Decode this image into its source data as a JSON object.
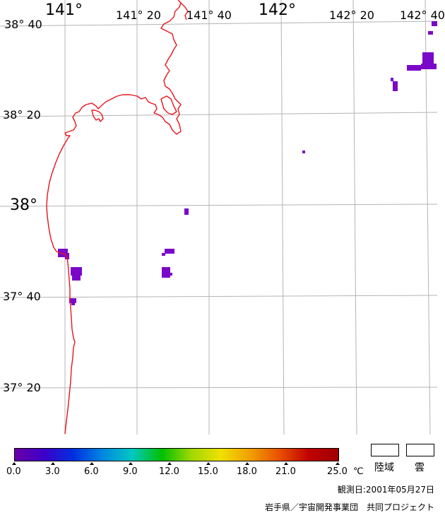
{
  "map": {
    "lon_labels": [
      "141°",
      "141° 20",
      "141° 40",
      "142°",
      "142° 20",
      "142° 40"
    ],
    "lat_labels": [
      "38° 40",
      "38° 20",
      "38°",
      "37° 40",
      "37° 20"
    ],
    "colors": {
      "coastline": "#e8141e",
      "grid": "#b4b4b4",
      "sst_patch": "#7a08c8"
    }
  },
  "scale": {
    "gradient_colors": [
      "#6a00a8",
      "#3c00c8",
      "#0030e0",
      "#0088e0",
      "#00c8c0",
      "#00c000",
      "#a0d800",
      "#f0e000",
      "#f0a000",
      "#e85000",
      "#c00000",
      "#a00000"
    ],
    "tick_labels": [
      "0.0",
      "3.0",
      "6.0",
      "9.0",
      "12.0",
      "15.0",
      "18.0",
      "21.0",
      "25.0"
    ],
    "unit": "℃"
  },
  "legend": {
    "land_label": "陸域",
    "cloud_label": "雲"
  },
  "footer": {
    "date_text": "観測日:2001年05月27日",
    "credit_text": "岩手県／宇宙開発事業団　共同プロジェクト"
  }
}
